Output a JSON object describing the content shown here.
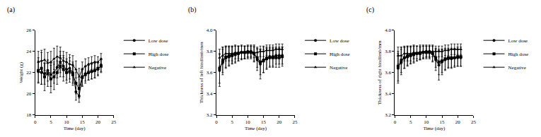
{
  "chart_data": [
    {
      "type": "line",
      "title": "(a)",
      "x_label": "Time (day)",
      "y_label": "Weight (g)",
      "x": [
        1,
        2,
        3,
        4,
        5,
        6,
        7,
        8,
        9,
        10,
        11,
        12,
        13,
        14,
        15,
        16,
        17,
        18,
        19,
        20,
        21
      ],
      "series": [
        {
          "name": "Low dose",
          "color": "#000000",
          "marker": "circle",
          "values": [
            22.1,
            22.0,
            21.9,
            22.2,
            21.8,
            22.0,
            22.5,
            23.0,
            22.6,
            22.3,
            22.4,
            22.0,
            20.2,
            19.8,
            21.5,
            21.9,
            22.0,
            22.1,
            22.2,
            22.3,
            22.7
          ],
          "errors": [
            1.0,
            1.1,
            1.0,
            1.0,
            1.1,
            1.0,
            1.0,
            1.0,
            1.0,
            1.0,
            1.0,
            1.0,
            0.8,
            0.6,
            0.8,
            0.7,
            0.7,
            0.7,
            0.7,
            0.6,
            0.6
          ]
        },
        {
          "name": "High dose",
          "color": "#000000",
          "marker": "square",
          "values": [
            22.2,
            22.4,
            21.6,
            21.9,
            21.4,
            21.6,
            22.0,
            22.6,
            22.3,
            22.0,
            22.1,
            21.8,
            21.0,
            20.5,
            21.6,
            21.8,
            22.0,
            22.1,
            22.2,
            22.4,
            22.6
          ],
          "errors": [
            1.2,
            1.5,
            1.3,
            1.2,
            1.3,
            1.2,
            1.1,
            1.0,
            1.1,
            1.0,
            1.0,
            1.0,
            1.0,
            0.9,
            0.8,
            0.8,
            0.7,
            0.7,
            0.7,
            0.6,
            0.6
          ]
        },
        {
          "name": "Negative",
          "color": "#000000",
          "marker": "triangle",
          "values": [
            23.0,
            23.1,
            23.2,
            22.9,
            23.0,
            23.3,
            23.5,
            23.4,
            23.1,
            23.0,
            22.8,
            22.7,
            22.3,
            21.6,
            22.3,
            22.6,
            22.8,
            22.9,
            23.0,
            23.0,
            23.3
          ],
          "errors": [
            1.0,
            1.0,
            1.0,
            1.0,
            1.0,
            1.0,
            1.0,
            1.0,
            0.9,
            0.9,
            0.9,
            0.9,
            0.8,
            0.8,
            0.7,
            0.7,
            0.6,
            0.6,
            0.6,
            0.5,
            0.5
          ]
        }
      ],
      "xlim": [
        0,
        25
      ],
      "xticks": [
        0,
        5,
        10,
        15,
        20,
        25
      ],
      "ylim": [
        18,
        26
      ],
      "yticks": [
        18,
        20,
        22,
        24,
        26
      ],
      "grid": false,
      "legend": "right"
    },
    {
      "type": "line",
      "title": "(b)",
      "x_label": "Time (day)",
      "y_label": "Thickness of left hindlimb/mm",
      "x": [
        1,
        2,
        3,
        4,
        5,
        6,
        7,
        8,
        9,
        10,
        11,
        12,
        13,
        14,
        15,
        16,
        17,
        18,
        19,
        20,
        21
      ],
      "series": [
        {
          "name": "Low dose",
          "color": "#000000",
          "marker": "circle",
          "values": [
            3.62,
            3.72,
            3.75,
            3.76,
            3.77,
            3.78,
            3.78,
            3.79,
            3.79,
            3.8,
            3.8,
            3.78,
            3.72,
            3.68,
            3.72,
            3.74,
            3.75,
            3.75,
            3.76,
            3.76,
            3.76
          ],
          "errors": [
            0.15,
            0.12,
            0.1,
            0.09,
            0.08,
            0.08,
            0.07,
            0.07,
            0.06,
            0.06,
            0.06,
            0.08,
            0.1,
            0.14,
            0.12,
            0.1,
            0.09,
            0.09,
            0.08,
            0.08,
            0.08
          ]
        },
        {
          "name": "High dose",
          "color": "#000000",
          "marker": "square",
          "values": [
            3.64,
            3.7,
            3.74,
            3.75,
            3.76,
            3.77,
            3.78,
            3.79,
            3.79,
            3.79,
            3.79,
            3.78,
            3.74,
            3.7,
            3.71,
            3.73,
            3.74,
            3.74,
            3.74,
            3.74,
            3.75
          ],
          "errors": [
            0.14,
            0.12,
            0.1,
            0.09,
            0.08,
            0.08,
            0.07,
            0.06,
            0.06,
            0.06,
            0.06,
            0.07,
            0.09,
            0.12,
            0.11,
            0.1,
            0.09,
            0.09,
            0.09,
            0.09,
            0.09
          ]
        },
        {
          "name": "Negative",
          "color": "#000000",
          "marker": "triangle",
          "values": [
            3.74,
            3.76,
            3.78,
            3.78,
            3.78,
            3.79,
            3.79,
            3.79,
            3.79,
            3.8,
            3.8,
            3.79,
            3.79,
            3.8,
            3.8,
            3.81,
            3.81,
            3.81,
            3.82,
            3.82,
            3.82
          ],
          "errors": [
            0.08,
            0.08,
            0.07,
            0.07,
            0.07,
            0.06,
            0.06,
            0.06,
            0.06,
            0.05,
            0.05,
            0.05,
            0.05,
            0.05,
            0.05,
            0.05,
            0.05,
            0.05,
            0.05,
            0.05,
            0.05
          ]
        }
      ],
      "xlim": [
        0,
        25
      ],
      "xticks": [
        0,
        5,
        10,
        15,
        20,
        25
      ],
      "ylim": [
        3.2,
        4
      ],
      "yticks": [
        3.2,
        3.4,
        3.6,
        3.8,
        {
          "value": 4,
          "label": "4.0"
        }
      ],
      "grid": false,
      "legend": "right"
    },
    {
      "type": "line",
      "title": "(c)",
      "x_label": "Time (day)",
      "y_label": "Thickness of right hindlimb/mm",
      "x": [
        1,
        2,
        3,
        4,
        5,
        6,
        7,
        8,
        9,
        10,
        11,
        12,
        13,
        14,
        15,
        16,
        17,
        18,
        19,
        20,
        21
      ],
      "series": [
        {
          "name": "Low dose",
          "color": "#000000",
          "marker": "circle",
          "values": [
            3.64,
            3.72,
            3.74,
            3.76,
            3.77,
            3.78,
            3.78,
            3.79,
            3.79,
            3.8,
            3.8,
            3.78,
            3.72,
            3.67,
            3.7,
            3.72,
            3.73,
            3.73,
            3.74,
            3.74,
            3.74
          ],
          "errors": [
            0.14,
            0.12,
            0.1,
            0.09,
            0.08,
            0.08,
            0.07,
            0.07,
            0.06,
            0.06,
            0.06,
            0.08,
            0.1,
            0.14,
            0.12,
            0.1,
            0.09,
            0.09,
            0.08,
            0.08,
            0.08
          ]
        },
        {
          "name": "High dose",
          "color": "#000000",
          "marker": "square",
          "values": [
            3.66,
            3.7,
            3.74,
            3.75,
            3.76,
            3.77,
            3.78,
            3.78,
            3.79,
            3.79,
            3.79,
            3.78,
            3.74,
            3.7,
            3.71,
            3.73,
            3.74,
            3.74,
            3.74,
            3.75,
            3.75
          ],
          "errors": [
            0.14,
            0.12,
            0.1,
            0.09,
            0.08,
            0.08,
            0.07,
            0.06,
            0.06,
            0.06,
            0.06,
            0.07,
            0.09,
            0.12,
            0.11,
            0.1,
            0.09,
            0.09,
            0.09,
            0.09,
            0.09
          ]
        },
        {
          "name": "Negative",
          "color": "#000000",
          "marker": "triangle",
          "values": [
            3.76,
            3.76,
            3.78,
            3.78,
            3.78,
            3.79,
            3.79,
            3.79,
            3.8,
            3.8,
            3.8,
            3.8,
            3.8,
            3.8,
            3.8,
            3.81,
            3.81,
            3.82,
            3.82,
            3.82,
            3.82
          ],
          "errors": [
            0.08,
            0.08,
            0.07,
            0.07,
            0.07,
            0.06,
            0.06,
            0.06,
            0.06,
            0.05,
            0.05,
            0.05,
            0.05,
            0.05,
            0.05,
            0.05,
            0.05,
            0.05,
            0.05,
            0.05,
            0.05
          ]
        }
      ],
      "xlim": [
        0,
        25
      ],
      "xticks": [
        0,
        5,
        10,
        15,
        20,
        25
      ],
      "ylim": [
        3.2,
        4
      ],
      "yticks": [
        3.2,
        3.4,
        3.6,
        3.8,
        {
          "value": 4,
          "label": "4.0"
        }
      ],
      "grid": false,
      "legend": "right"
    }
  ]
}
